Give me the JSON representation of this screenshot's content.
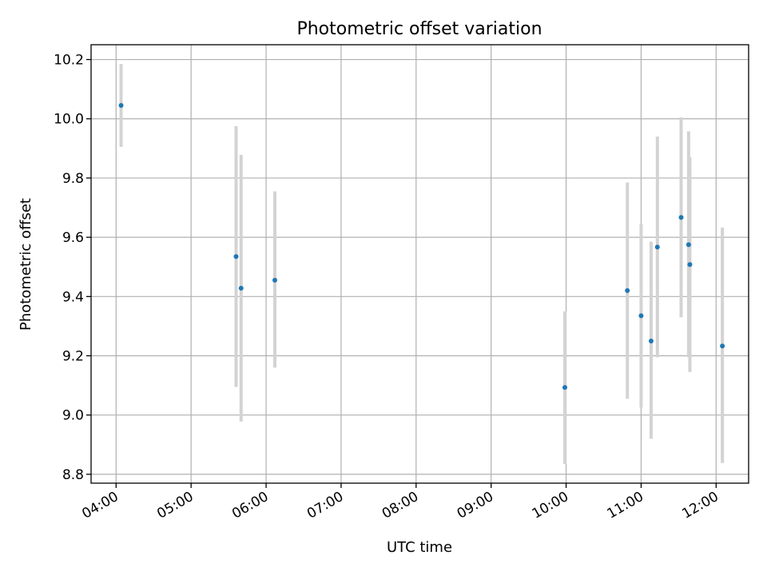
{
  "chart_data": {
    "type": "scatter",
    "title": "Photometric offset variation",
    "xlabel": "UTC time",
    "ylabel": "Photometric offset",
    "x_ticks": [
      "04:00",
      "05:00",
      "06:00",
      "07:00",
      "08:00",
      "09:00",
      "10:00",
      "11:00",
      "12:00"
    ],
    "y_ticks": [
      "8.8",
      "9.0",
      "9.2",
      "9.4",
      "9.6",
      "9.8",
      "10.0",
      "10.2"
    ],
    "xlim": [
      "03:40",
      "12:26"
    ],
    "ylim": [
      8.77,
      10.25
    ],
    "grid": true,
    "colors": {
      "point": "#1f77b4",
      "errorbar": "#d3d3d3",
      "grid": "#b0b0b0"
    },
    "points": [
      {
        "time": "04:04",
        "y": 10.045,
        "ylow": 9.905,
        "yhigh": 10.185
      },
      {
        "time": "05:36",
        "y": 9.535,
        "ylow": 9.095,
        "yhigh": 9.975
      },
      {
        "time": "05:40",
        "y": 9.428,
        "ylow": 8.978,
        "yhigh": 9.878
      },
      {
        "time": "06:07",
        "y": 9.455,
        "ylow": 9.16,
        "yhigh": 9.755
      },
      {
        "time": "09:59",
        "y": 9.093,
        "ylow": 8.835,
        "yhigh": 9.35
      },
      {
        "time": "10:49",
        "y": 9.42,
        "ylow": 9.055,
        "yhigh": 9.785
      },
      {
        "time": "11:00",
        "y": 9.335,
        "ylow": 9.025,
        "yhigh": 9.645
      },
      {
        "time": "11:08",
        "y": 9.25,
        "ylow": 8.92,
        "yhigh": 9.585
      },
      {
        "time": "11:13",
        "y": 9.567,
        "ylow": 9.195,
        "yhigh": 9.94
      },
      {
        "time": "11:32",
        "y": 9.667,
        "ylow": 9.33,
        "yhigh": 10.005
      },
      {
        "time": "11:38",
        "y": 9.575,
        "ylow": 9.195,
        "yhigh": 9.958
      },
      {
        "time": "11:39",
        "y": 9.508,
        "ylow": 9.145,
        "yhigh": 9.87
      },
      {
        "time": "12:05",
        "y": 9.233,
        "ylow": 8.838,
        "yhigh": 9.633
      }
    ]
  }
}
